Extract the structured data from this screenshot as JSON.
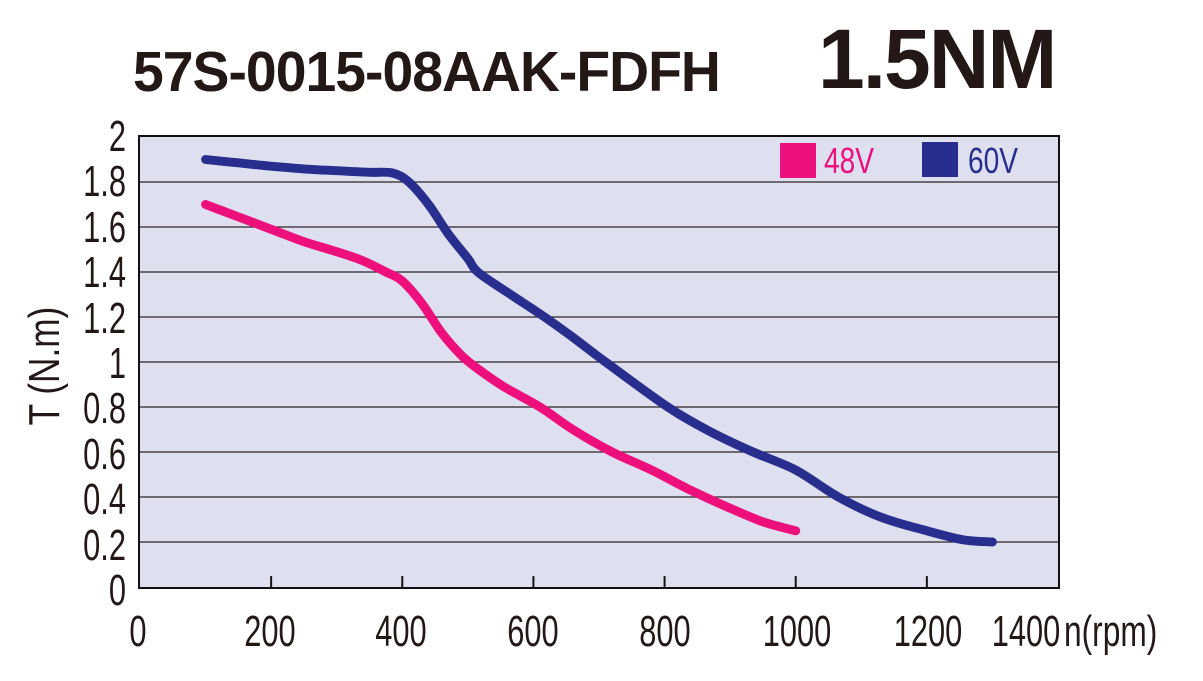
{
  "title": {
    "model": "57S-0015-08AAK-FDFH",
    "rating": "1.5NM"
  },
  "chart_data": {
    "type": "line",
    "title": "57S-0015-08AAK-FDFH",
    "subtitle": "1.5NM",
    "xlabel": "n(rpm)",
    "ylabel": "T (N.m)",
    "xlim": [
      0,
      1400
    ],
    "ylim": [
      0,
      2
    ],
    "x_ticks": [
      0,
      200,
      400,
      600,
      800,
      1000,
      1200,
      1400
    ],
    "x_tick_labels": [
      "0",
      "200",
      "400",
      "600",
      "800",
      "1000",
      "1200",
      "1400"
    ],
    "y_ticks": [
      2,
      1.8,
      1.6,
      1.4,
      1.2,
      1,
      0.8,
      0.6,
      0.4,
      0.2,
      0
    ],
    "y_tick_labels": [
      "2",
      "1.8",
      "1.6",
      "1.4",
      "1.2",
      "1",
      "0.8",
      "0.6",
      "0.4",
      "0.2",
      "0"
    ],
    "grid": "horizontal",
    "legend_position": "top-right-inside",
    "series": [
      {
        "name": "48V",
        "color": "#EC0F7C",
        "points": [
          [
            100,
            1.7
          ],
          [
            150,
            1.645
          ],
          [
            200,
            1.59
          ],
          [
            250,
            1.535
          ],
          [
            300,
            1.49
          ],
          [
            340,
            1.45
          ],
          [
            375,
            1.4
          ],
          [
            400,
            1.36
          ],
          [
            430,
            1.26
          ],
          [
            460,
            1.13
          ],
          [
            490,
            1.03
          ],
          [
            515,
            0.97
          ],
          [
            555,
            0.89
          ],
          [
            610,
            0.8
          ],
          [
            660,
            0.7
          ],
          [
            720,
            0.6
          ],
          [
            780,
            0.52
          ],
          [
            840,
            0.43
          ],
          [
            900,
            0.35
          ],
          [
            950,
            0.29
          ],
          [
            1000,
            0.25
          ]
        ]
      },
      {
        "name": "60V",
        "color": "#272E8E",
        "points": [
          [
            100,
            1.9
          ],
          [
            150,
            1.885
          ],
          [
            200,
            1.87
          ],
          [
            250,
            1.858
          ],
          [
            300,
            1.85
          ],
          [
            350,
            1.843
          ],
          [
            385,
            1.84
          ],
          [
            410,
            1.8
          ],
          [
            440,
            1.7
          ],
          [
            470,
            1.57
          ],
          [
            500,
            1.46
          ],
          [
            515,
            1.4
          ],
          [
            560,
            1.31
          ],
          [
            617,
            1.2
          ],
          [
            660,
            1.11
          ],
          [
            710,
            1.0
          ],
          [
            805,
            0.8
          ],
          [
            870,
            0.69
          ],
          [
            935,
            0.6
          ],
          [
            1000,
            0.52
          ],
          [
            1065,
            0.4
          ],
          [
            1130,
            0.31
          ],
          [
            1200,
            0.25
          ],
          [
            1255,
            0.21
          ],
          [
            1300,
            0.2
          ]
        ]
      }
    ]
  },
  "colors": {
    "plot_background": "#DEE0F0",
    "gridline": "#2B2423",
    "axis_border": "#14100F",
    "tick_mark": "#14100F",
    "text": "#231815",
    "series_48v": "#EC0F7C",
    "series_60v": "#272E8E"
  }
}
